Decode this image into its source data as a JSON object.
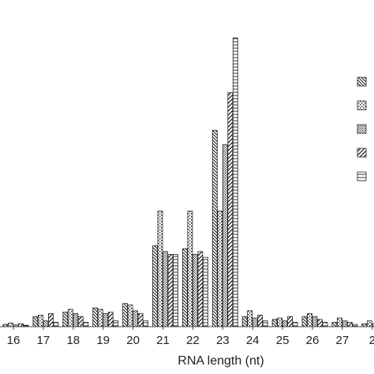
{
  "chart_data": {
    "type": "bar",
    "xlabel": "RNA length (nt)",
    "ylabel": "",
    "title": "",
    "categories": [
      "16",
      "17",
      "18",
      "19",
      "20",
      "21",
      "22",
      "23",
      "24",
      "25",
      "26",
      "27",
      "2"
    ],
    "ylim": [
      0,
      100
    ],
    "grid": false,
    "legend_position": "right",
    "series": [
      {
        "pattern": "diagonal-down",
        "values": [
          0.8,
          3.5,
          5.0,
          6.5,
          8.0,
          28,
          27,
          68,
          3.5,
          2.5,
          3.5,
          1.5,
          1.0
        ]
      },
      {
        "pattern": "dots-sparse",
        "values": [
          1.2,
          4.0,
          6.0,
          6.0,
          7.5,
          40,
          40,
          40,
          5.5,
          3.0,
          4.5,
          3.0,
          2.0
        ]
      },
      {
        "pattern": "dots-dense",
        "values": [
          0.6,
          2.0,
          4.5,
          4.5,
          5.5,
          26,
          25,
          63,
          3.0,
          2.0,
          3.5,
          2.0,
          1.0
        ]
      },
      {
        "pattern": "diagonal-up",
        "values": [
          1.0,
          4.5,
          3.5,
          5.0,
          4.5,
          25,
          26,
          81,
          4.0,
          3.5,
          2.5,
          1.5,
          1.0
        ]
      },
      {
        "pattern": "horizontal",
        "values": [
          0.5,
          1.5,
          1.5,
          2.0,
          2.0,
          25,
          24,
          100,
          2.0,
          1.5,
          1.5,
          0.8,
          2.0
        ]
      }
    ],
    "legend": []
  },
  "axis": {
    "color": "#444444"
  }
}
